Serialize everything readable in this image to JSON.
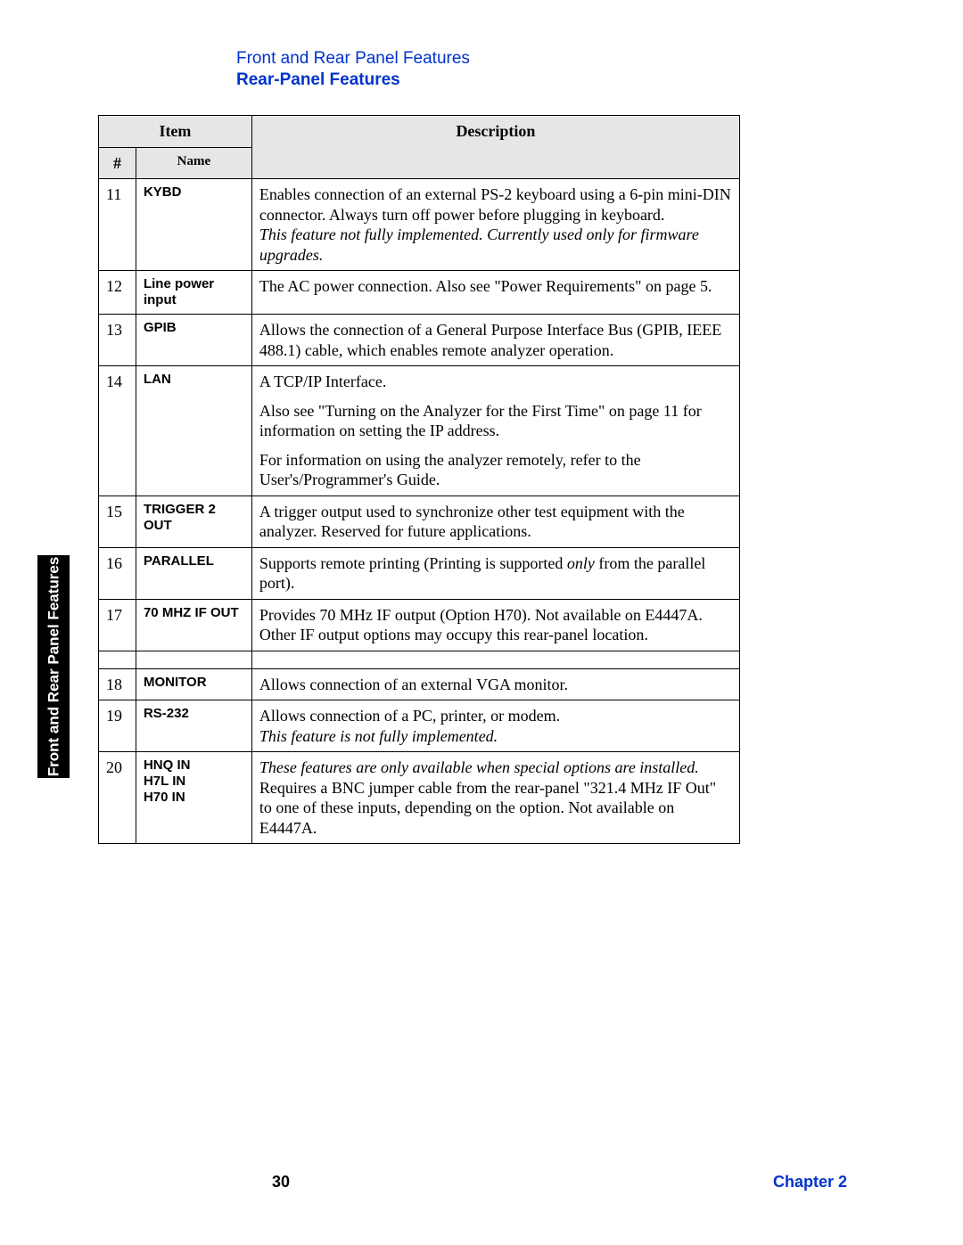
{
  "header": {
    "breadcrumb": "Front and Rear Panel Features",
    "section": "Rear-Panel Features"
  },
  "table": {
    "head": {
      "item": "Item",
      "num": "#",
      "name": "Name",
      "description": "Description"
    },
    "rows": [
      {
        "num": "11",
        "name": "KYBD",
        "desc": [
          {
            "text": "Enables connection of an external PS-2 keyboard using a 6-pin mini-DIN connector. Always turn off power before plugging in keyboard."
          },
          {
            "text": "This feature not fully implemented. Currently used only for firmware upgrades.",
            "italic": true,
            "inline": true
          }
        ]
      },
      {
        "num": "12",
        "name": "Line power input",
        "desc": [
          {
            "text": "The AC power connection. Also see \"Power Requirements\" on page 5."
          }
        ]
      },
      {
        "num": "13",
        "name": "GPIB",
        "desc": [
          {
            "text": "Allows the connection of a General Purpose Interface Bus (GPIB, IEEE 488.1) cable, which enables remote analyzer operation."
          }
        ]
      },
      {
        "num": "14",
        "name": "LAN",
        "desc": [
          {
            "text": "A TCP/IP Interface."
          },
          {
            "text": "Also see \"Turning on the Analyzer for the First Time\" on page 11 for information on setting the IP address."
          },
          {
            "text": "For information on using the analyzer remotely, refer to the User's/Programmer's Guide."
          }
        ]
      },
      {
        "num": "15",
        "name": "TRIGGER 2 OUT",
        "desc": [
          {
            "text": "A trigger output used to synchronize other test equipment with the analyzer. Reserved for future applications."
          }
        ]
      },
      {
        "num": "16",
        "name": "PARALLEL",
        "desc": [
          {
            "html": "Supports remote printing (Printing is supported <em>only</em> from the parallel port)."
          }
        ]
      },
      {
        "num": "17",
        "name": "70 MHZ IF OUT",
        "desc": [
          {
            "text": "Provides 70 MHz IF output (Option H70). Not available on E4447A."
          },
          {
            "text": "Other IF output options may occupy this rear-panel location.",
            "inline": true
          }
        ]
      },
      {
        "spacer": true
      },
      {
        "num": "18",
        "name": "MONITOR",
        "desc": [
          {
            "text": "Allows connection of an external VGA monitor."
          }
        ]
      },
      {
        "num": "19",
        "name": "RS-232",
        "desc": [
          {
            "text": "Allows connection of a PC, printer, or modem."
          },
          {
            "text": "This feature is not fully implemented.",
            "italic": true,
            "inline": true
          }
        ]
      },
      {
        "num": "20",
        "name": "HNQ IN\nH7L IN\nH70 IN",
        "desc": [
          {
            "html": "<em>These features are only available when special options are installed.</em><br>Requires a BNC jumper cable from the rear-panel \"321.4 MHz IF Out\" to one of these inputs, depending on the option. Not available on E4447A."
          }
        ]
      }
    ]
  },
  "sidetab": "Front and Rear Panel Features",
  "footer": {
    "page": "30",
    "chapter": "Chapter 2"
  }
}
